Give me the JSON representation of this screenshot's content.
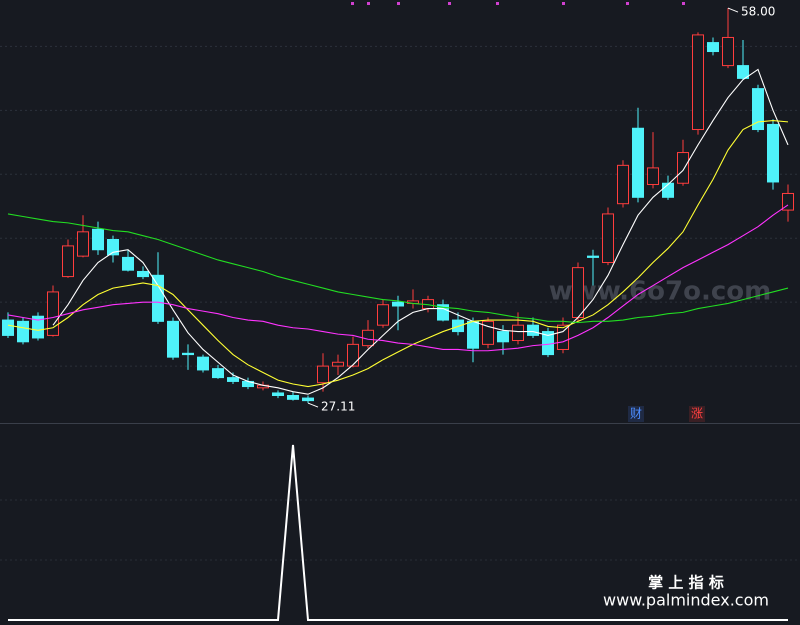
{
  "chart_data": [
    {
      "type": "candlestick",
      "open": [
        33.6,
        33.5,
        33.9,
        32.4,
        37.0,
        38.6,
        40.7,
        39.9,
        38.5,
        37.4,
        37.1,
        33.5,
        31.0,
        30.7,
        29.8,
        29.1,
        28.8,
        28.3,
        27.9,
        27.7,
        27.5,
        28.7,
        30.0,
        30.0,
        31.6,
        33.2,
        35.0,
        34.9,
        34.5,
        34.8,
        33.6,
        33.5,
        31.7,
        32.7,
        32.0,
        33.2,
        32.7,
        31.3,
        33.8,
        38.6,
        38.1,
        42.7,
        48.6,
        44.2,
        44.3,
        44.3,
        48.5,
        55.3,
        53.5,
        53.5,
        51.7,
        48.9,
        42.2
      ],
      "high": [
        34.2,
        33.8,
        34.2,
        36.3,
        39.9,
        41.8,
        41.3,
        40.2,
        39.1,
        37.8,
        38.9,
        33.8,
        31.7,
        30.9,
        30.1,
        29.5,
        29.1,
        28.8,
        28.1,
        28.0,
        27.7,
        31.0,
        30.9,
        32.3,
        33.6,
        35.2,
        35.5,
        36.0,
        35.5,
        35.2,
        34.2,
        33.8,
        33.8,
        33.2,
        34.2,
        33.8,
        33.0,
        33.8,
        38.1,
        39.1,
        42.4,
        46.1,
        50.2,
        48.3,
        44.9,
        47.7,
        56.1,
        55.7,
        58.0,
        55.5,
        52.0,
        49.3,
        44.2
      ],
      "low": [
        32.2,
        31.7,
        32.0,
        32.3,
        36.9,
        38.5,
        38.7,
        38.1,
        37.4,
        36.8,
        33.3,
        30.5,
        29.7,
        29.5,
        29.0,
        28.6,
        28.2,
        28.1,
        27.5,
        27.3,
        27.11,
        28.0,
        29.3,
        29.9,
        31.4,
        33.0,
        32.8,
        34.5,
        34.2,
        33.5,
        32.4,
        30.3,
        31.4,
        30.9,
        31.7,
        32.2,
        30.7,
        31.0,
        33.5,
        36.3,
        37.9,
        42.4,
        42.8,
        43.9,
        43.0,
        44.1,
        48.1,
        54.3,
        53.3,
        52.4,
        48.3,
        43.8,
        41.3
      ],
      "close": [
        32.4,
        31.9,
        32.2,
        35.8,
        39.4,
        40.5,
        39.1,
        38.7,
        37.5,
        37.0,
        33.5,
        30.7,
        30.9,
        29.7,
        29.1,
        28.8,
        28.4,
        28.5,
        27.7,
        27.4,
        27.3,
        30.0,
        30.3,
        31.7,
        32.8,
        34.8,
        34.7,
        35.1,
        35.2,
        33.6,
        32.7,
        31.4,
        33.5,
        31.9,
        33.2,
        32.4,
        30.9,
        33.2,
        37.7,
        38.5,
        41.9,
        45.7,
        43.2,
        45.5,
        43.2,
        46.7,
        55.9,
        54.6,
        55.7,
        52.5,
        48.5,
        44.4,
        43.5
      ],
      "up_color": "#ff3d3d",
      "down_color": "#4ff2fa",
      "series": [
        {
          "color": "#ffffff",
          "values": [
            null,
            null,
            null,
            33.2,
            34.8,
            36.7,
            38.1,
            38.9,
            39.1,
            38.1,
            36.3,
            34.4,
            32.6,
            31.3,
            30.3,
            29.3,
            28.8,
            28.5,
            28.3,
            28.0,
            27.8,
            28.3,
            29.1,
            30.1,
            31.3,
            32.4,
            33.5,
            34.2,
            34.5,
            34.5,
            34.0,
            33.5,
            33.1,
            32.8,
            32.7,
            32.7,
            32.4,
            32.7,
            33.8,
            35.2,
            37.1,
            39.5,
            41.8,
            43.2,
            44.2,
            45.3,
            47.3,
            49.2,
            51.0,
            52.4,
            53.2,
            50.0,
            47.3
          ]
        },
        {
          "color": "#ffff33",
          "values": [
            33.2,
            33.0,
            32.8,
            33.0,
            33.8,
            34.8,
            35.6,
            36.1,
            36.3,
            36.5,
            36.3,
            35.6,
            34.4,
            33.2,
            32.0,
            30.9,
            30.1,
            29.5,
            28.9,
            28.6,
            28.4,
            28.6,
            28.9,
            29.3,
            29.8,
            30.5,
            31.1,
            31.7,
            32.2,
            32.7,
            33.1,
            33.5,
            33.6,
            33.6,
            33.6,
            33.5,
            33.1,
            33.0,
            33.5,
            34.0,
            34.8,
            35.8,
            36.9,
            38.1,
            39.2,
            40.5,
            42.6,
            44.6,
            46.9,
            48.5,
            49.1,
            49.2,
            49.1
          ]
        },
        {
          "color": "#ff33ff",
          "values": [
            34.0,
            33.8,
            33.6,
            33.8,
            34.1,
            34.4,
            34.6,
            34.8,
            34.9,
            35.0,
            35.0,
            34.8,
            34.5,
            34.3,
            34.1,
            33.8,
            33.6,
            33.5,
            33.2,
            33.0,
            32.9,
            32.7,
            32.5,
            32.4,
            32.1,
            32.0,
            31.8,
            31.7,
            31.5,
            31.3,
            31.3,
            31.2,
            31.2,
            31.3,
            31.4,
            31.6,
            31.7,
            31.9,
            32.4,
            33.0,
            33.8,
            34.7,
            35.6,
            36.3,
            37.0,
            37.7,
            38.3,
            38.9,
            39.5,
            40.2,
            40.9,
            41.8,
            42.6
          ]
        },
        {
          "color": "#22dd22",
          "values": [
            41.9,
            41.7,
            41.5,
            41.3,
            41.2,
            41.0,
            40.8,
            40.6,
            40.5,
            40.2,
            39.9,
            39.5,
            39.1,
            38.7,
            38.3,
            38.0,
            37.7,
            37.4,
            37.0,
            36.7,
            36.4,
            36.1,
            35.8,
            35.6,
            35.4,
            35.2,
            35.1,
            34.9,
            34.8,
            34.6,
            34.5,
            34.3,
            34.2,
            34.0,
            33.8,
            33.7,
            33.5,
            33.5,
            33.4,
            33.5,
            33.5,
            33.6,
            33.8,
            33.9,
            34.1,
            34.2,
            34.5,
            34.7,
            34.9,
            35.2,
            35.5,
            35.8,
            36.1
          ]
        }
      ],
      "ylim": [
        25.55,
        58.63
      ],
      "yticks": [
        30,
        35,
        40,
        45,
        50,
        55
      ],
      "grid": true,
      "annotations": [
        "58.00",
        "27.11"
      ]
    },
    {
      "type": "line",
      "series": [
        {
          "color": "#ffffff",
          "values": [
            0,
            0,
            0,
            0,
            0,
            0,
            0,
            0,
            0,
            0,
            0,
            0,
            0,
            0,
            0,
            0,
            0,
            0,
            0,
            1,
            0,
            0,
            0,
            0,
            0,
            0,
            0,
            0,
            0,
            0,
            0,
            0,
            0,
            0,
            0,
            0,
            0,
            0,
            0,
            0,
            0,
            0,
            0,
            0,
            0,
            0,
            0,
            0,
            0,
            0,
            0,
            0,
            0
          ]
        }
      ],
      "ylim": [
        0,
        1
      ]
    }
  ],
  "badges": {
    "finance": "财",
    "rise": "涨"
  },
  "watermark": {
    "site": "www.6o7o.com",
    "title": "掌 上 指 标",
    "url": "www.palmindex.com"
  }
}
